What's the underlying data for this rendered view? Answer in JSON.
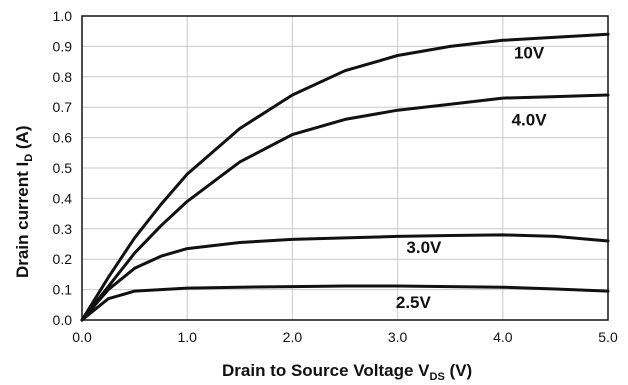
{
  "chart_data": {
    "type": "line",
    "xlabel": "Drain to Source Voltage V",
    "xlabel_sub": "DS",
    "xlabel_unit": "(V)",
    "ylabel": "Drain current I",
    "ylabel_sub": "D",
    "ylabel_unit": "(A)",
    "xlim": [
      0,
      5
    ],
    "ylim": [
      0,
      1.0
    ],
    "x_ticks": [
      "0.0",
      "1.0",
      "2.0",
      "3.0",
      "4.0",
      "5.0"
    ],
    "y_ticks": [
      "0.0",
      "0.1",
      "0.2",
      "0.3",
      "0.4",
      "0.5",
      "0.6",
      "0.7",
      "0.8",
      "0.9",
      "1.0"
    ],
    "grid": true,
    "series": [
      {
        "name": "10V",
        "x": [
          0,
          0.25,
          0.5,
          0.75,
          1.0,
          1.5,
          2.0,
          2.5,
          3.0,
          3.5,
          4.0,
          4.5,
          5.0
        ],
        "y": [
          0.0,
          0.14,
          0.27,
          0.38,
          0.48,
          0.63,
          0.74,
          0.82,
          0.87,
          0.9,
          0.92,
          0.93,
          0.94
        ]
      },
      {
        "name": "4.0V",
        "x": [
          0,
          0.25,
          0.5,
          0.75,
          1.0,
          1.5,
          2.0,
          2.5,
          3.0,
          3.5,
          4.0,
          4.5,
          5.0
        ],
        "y": [
          0.0,
          0.11,
          0.22,
          0.31,
          0.39,
          0.52,
          0.61,
          0.66,
          0.69,
          0.71,
          0.73,
          0.735,
          0.74
        ]
      },
      {
        "name": "3.0V",
        "x": [
          0,
          0.25,
          0.5,
          0.75,
          1.0,
          1.5,
          2.0,
          2.5,
          3.0,
          3.5,
          4.0,
          4.5,
          5.0
        ],
        "y": [
          0.0,
          0.1,
          0.17,
          0.21,
          0.235,
          0.255,
          0.265,
          0.27,
          0.275,
          0.278,
          0.28,
          0.275,
          0.26
        ]
      },
      {
        "name": "2.5V",
        "x": [
          0,
          0.25,
          0.5,
          0.75,
          1.0,
          1.5,
          2.0,
          2.5,
          3.0,
          3.5,
          4.0,
          4.5,
          5.0
        ],
        "y": [
          0.0,
          0.07,
          0.095,
          0.1,
          0.105,
          0.108,
          0.11,
          0.112,
          0.112,
          0.11,
          0.108,
          0.102,
          0.095
        ]
      }
    ]
  }
}
